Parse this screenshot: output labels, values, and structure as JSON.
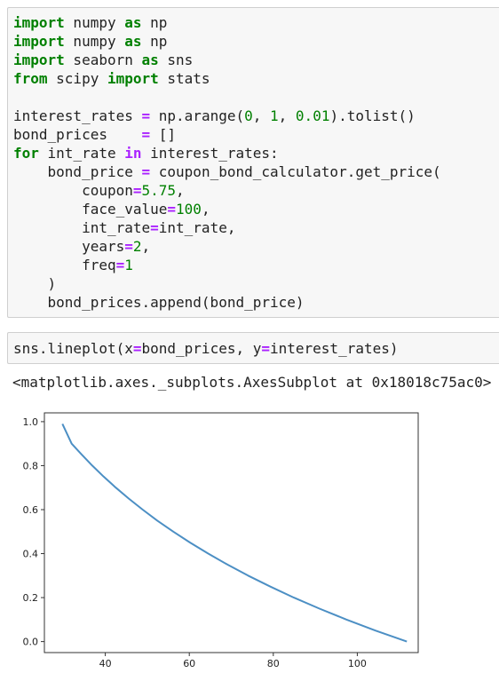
{
  "cells": [
    {
      "lines": [
        [
          {
            "t": "import",
            "c": "kw"
          },
          {
            "t": " numpy "
          },
          {
            "t": "as",
            "c": "kw"
          },
          {
            "t": " np"
          }
        ],
        [
          {
            "t": "import",
            "c": "kw"
          },
          {
            "t": " numpy "
          },
          {
            "t": "as",
            "c": "kw"
          },
          {
            "t": " np"
          }
        ],
        [
          {
            "t": "import",
            "c": "kw"
          },
          {
            "t": " seaborn "
          },
          {
            "t": "as",
            "c": "kw"
          },
          {
            "t": " sns"
          }
        ],
        [
          {
            "t": "from",
            "c": "kw"
          },
          {
            "t": " scipy "
          },
          {
            "t": "import",
            "c": "kw"
          },
          {
            "t": " stats"
          }
        ],
        [],
        [
          {
            "t": "interest_rates "
          },
          {
            "t": "=",
            "c": "op"
          },
          {
            "t": " np.arange("
          },
          {
            "t": "0",
            "c": "num"
          },
          {
            "t": ", "
          },
          {
            "t": "1",
            "c": "num"
          },
          {
            "t": ", "
          },
          {
            "t": "0.01",
            "c": "num"
          },
          {
            "t": ").tolist()"
          }
        ],
        [
          {
            "t": "bond_prices    "
          },
          {
            "t": "=",
            "c": "op"
          },
          {
            "t": " []"
          }
        ],
        [
          {
            "t": "for",
            "c": "kw"
          },
          {
            "t": " int_rate "
          },
          {
            "t": "in",
            "c": "op"
          },
          {
            "t": " interest_rates:"
          }
        ],
        [
          {
            "t": "    bond_price "
          },
          {
            "t": "=",
            "c": "op"
          },
          {
            "t": " coupon_bond_calculator.get_price("
          }
        ],
        [
          {
            "t": "        coupon"
          },
          {
            "t": "=",
            "c": "op"
          },
          {
            "t": "5.75",
            "c": "num"
          },
          {
            "t": ","
          }
        ],
        [
          {
            "t": "        face_value"
          },
          {
            "t": "=",
            "c": "op"
          },
          {
            "t": "100",
            "c": "num"
          },
          {
            "t": ","
          }
        ],
        [
          {
            "t": "        int_rate"
          },
          {
            "t": "=",
            "c": "op"
          },
          {
            "t": "int_rate,"
          }
        ],
        [
          {
            "t": "        years"
          },
          {
            "t": "=",
            "c": "op"
          },
          {
            "t": "2",
            "c": "num"
          },
          {
            "t": ","
          }
        ],
        [
          {
            "t": "        freq"
          },
          {
            "t": "=",
            "c": "op"
          },
          {
            "t": "1",
            "c": "num"
          }
        ],
        [
          {
            "t": "    )"
          }
        ],
        [
          {
            "t": "    bond_prices.append(bond_price)"
          }
        ]
      ]
    },
    {
      "lines": [
        [
          {
            "t": "sns.lineplot(x"
          },
          {
            "t": "=",
            "c": "op"
          },
          {
            "t": "bond_prices, y"
          },
          {
            "t": "=",
            "c": "op"
          },
          {
            "t": "interest_rates)"
          }
        ]
      ]
    }
  ],
  "output_text": "<matplotlib.axes._subplots.AxesSubplot at 0x18018c75ac0>",
  "chart_data": {
    "type": "line",
    "xlim": [
      25.5,
      114.5
    ],
    "ylim": [
      -0.05,
      1.04
    ],
    "xticks": [
      40,
      60,
      80,
      100
    ],
    "yticks": [
      0.0,
      0.2,
      0.4,
      0.6,
      0.8,
      1.0
    ],
    "xtick_labels": [
      "40",
      "60",
      "80",
      "100"
    ],
    "ytick_labels": [
      "0.0",
      "0.2",
      "0.4",
      "0.6",
      "0.8",
      "1.0"
    ],
    "series": [
      {
        "x": [
          111.8,
          104.3,
          97.4,
          91.0,
          84.9,
          79.3,
          74.0,
          69.1,
          64.5,
          60.2,
          56.2,
          52.4,
          48.9,
          45.6,
          42.5,
          39.6,
          36.9,
          34.4,
          32.0,
          29.8
        ],
        "y": [
          0.0,
          0.05,
          0.1,
          0.15,
          0.2,
          0.25,
          0.3,
          0.35,
          0.4,
          0.45,
          0.5,
          0.55,
          0.6,
          0.65,
          0.7,
          0.75,
          0.8,
          0.85,
          0.9,
          0.99
        ]
      }
    ],
    "line_color": "#4c8fc4",
    "grid": false
  }
}
